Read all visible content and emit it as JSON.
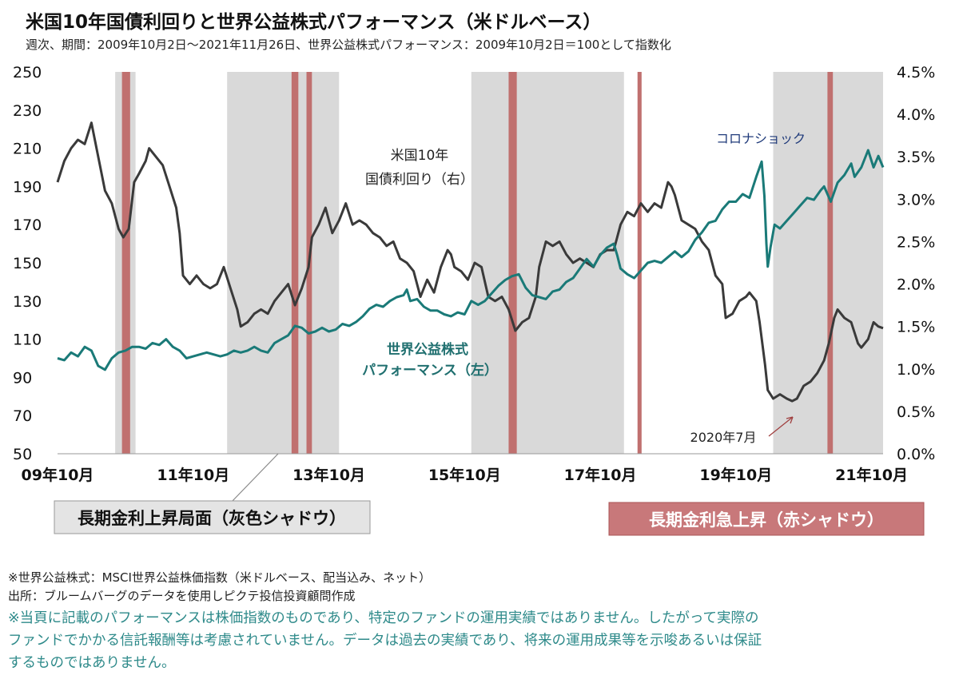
{
  "header": {
    "title": "米国10年国債利回りと世界公益株式パフォーマンス（米ドルベース）",
    "subtitle": "週次、期間：2009年10月2日～2021年11月26日、世界公益株式パフォーマンス：2009年10月2日＝100として指数化"
  },
  "chart_data": {
    "type": "line",
    "x_unit": "year",
    "x_range": [
      2009.75,
      2021.92
    ],
    "x_tick_labels": [
      "09年10月",
      "11年10月",
      "13年10月",
      "15年10月",
      "17年10月",
      "19年10月",
      "21年10月"
    ],
    "left_axis": {
      "ylim": [
        50,
        250
      ],
      "ticks": [
        "50",
        "70",
        "90",
        "110",
        "130",
        "150",
        "170",
        "190",
        "210",
        "230",
        "250"
      ]
    },
    "right_axis": {
      "ylim": [
        0.0,
        4.5
      ],
      "ticks": [
        "0.0%",
        "0.5%",
        "1.0%",
        "1.5%",
        "2.0%",
        "2.5%",
        "3.0%",
        "3.5%",
        "4.0%",
        "4.5%"
      ]
    },
    "series": [
      {
        "name": "米国10年国債利回り（右）",
        "axis": "right",
        "color": "#3a3a3a",
        "points": [
          [
            2009.75,
            3.2
          ],
          [
            2009.85,
            3.45
          ],
          [
            2009.95,
            3.6
          ],
          [
            2010.05,
            3.7
          ],
          [
            2010.15,
            3.65
          ],
          [
            2010.25,
            3.9
          ],
          [
            2010.35,
            3.5
          ],
          [
            2010.45,
            3.1
          ],
          [
            2010.55,
            2.95
          ],
          [
            2010.65,
            2.65
          ],
          [
            2010.72,
            2.55
          ],
          [
            2010.8,
            2.65
          ],
          [
            2010.88,
            3.2
          ],
          [
            2010.95,
            3.3
          ],
          [
            2011.05,
            3.45
          ],
          [
            2011.1,
            3.6
          ],
          [
            2011.2,
            3.5
          ],
          [
            2011.3,
            3.4
          ],
          [
            2011.4,
            3.15
          ],
          [
            2011.5,
            2.9
          ],
          [
            2011.55,
            2.6
          ],
          [
            2011.6,
            2.1
          ],
          [
            2011.7,
            2.0
          ],
          [
            2011.8,
            2.1
          ],
          [
            2011.9,
            2.0
          ],
          [
            2012.0,
            1.95
          ],
          [
            2012.1,
            2.0
          ],
          [
            2012.2,
            2.2
          ],
          [
            2012.3,
            1.95
          ],
          [
            2012.4,
            1.7
          ],
          [
            2012.45,
            1.5
          ],
          [
            2012.55,
            1.55
          ],
          [
            2012.65,
            1.65
          ],
          [
            2012.75,
            1.7
          ],
          [
            2012.85,
            1.65
          ],
          [
            2012.95,
            1.8
          ],
          [
            2013.05,
            1.9
          ],
          [
            2013.15,
            2.0
          ],
          [
            2013.25,
            1.75
          ],
          [
            2013.35,
            1.95
          ],
          [
            2013.45,
            2.2
          ],
          [
            2013.5,
            2.55
          ],
          [
            2013.6,
            2.7
          ],
          [
            2013.7,
            2.9
          ],
          [
            2013.8,
            2.6
          ],
          [
            2013.9,
            2.75
          ],
          [
            2014.0,
            2.95
          ],
          [
            2014.1,
            2.7
          ],
          [
            2014.2,
            2.75
          ],
          [
            2014.3,
            2.7
          ],
          [
            2014.4,
            2.6
          ],
          [
            2014.5,
            2.55
          ],
          [
            2014.6,
            2.45
          ],
          [
            2014.7,
            2.5
          ],
          [
            2014.8,
            2.3
          ],
          [
            2014.9,
            2.25
          ],
          [
            2015.0,
            2.15
          ],
          [
            2015.1,
            1.85
          ],
          [
            2015.2,
            2.05
          ],
          [
            2015.3,
            1.9
          ],
          [
            2015.4,
            2.2
          ],
          [
            2015.5,
            2.4
          ],
          [
            2015.55,
            2.35
          ],
          [
            2015.6,
            2.2
          ],
          [
            2015.7,
            2.15
          ],
          [
            2015.8,
            2.05
          ],
          [
            2015.9,
            2.25
          ],
          [
            2016.0,
            2.2
          ],
          [
            2016.1,
            1.85
          ],
          [
            2016.2,
            1.8
          ],
          [
            2016.3,
            1.85
          ],
          [
            2016.4,
            1.7
          ],
          [
            2016.5,
            1.45
          ],
          [
            2016.6,
            1.55
          ],
          [
            2016.7,
            1.6
          ],
          [
            2016.8,
            1.85
          ],
          [
            2016.85,
            2.2
          ],
          [
            2016.95,
            2.5
          ],
          [
            2017.05,
            2.45
          ],
          [
            2017.15,
            2.5
          ],
          [
            2017.25,
            2.35
          ],
          [
            2017.35,
            2.25
          ],
          [
            2017.45,
            2.3
          ],
          [
            2017.55,
            2.25
          ],
          [
            2017.65,
            2.2
          ],
          [
            2017.75,
            2.35
          ],
          [
            2017.85,
            2.4
          ],
          [
            2017.95,
            2.4
          ],
          [
            2018.05,
            2.7
          ],
          [
            2018.15,
            2.85
          ],
          [
            2018.25,
            2.8
          ],
          [
            2018.35,
            2.95
          ],
          [
            2018.45,
            2.85
          ],
          [
            2018.55,
            2.95
          ],
          [
            2018.65,
            2.9
          ],
          [
            2018.75,
            3.2
          ],
          [
            2018.8,
            3.15
          ],
          [
            2018.85,
            3.05
          ],
          [
            2018.95,
            2.75
          ],
          [
            2019.05,
            2.7
          ],
          [
            2019.15,
            2.65
          ],
          [
            2019.25,
            2.5
          ],
          [
            2019.35,
            2.4
          ],
          [
            2019.45,
            2.1
          ],
          [
            2019.55,
            2.0
          ],
          [
            2019.6,
            1.6
          ],
          [
            2019.7,
            1.65
          ],
          [
            2019.8,
            1.8
          ],
          [
            2019.9,
            1.85
          ],
          [
            2019.95,
            1.9
          ],
          [
            2020.05,
            1.8
          ],
          [
            2020.1,
            1.55
          ],
          [
            2020.18,
            1.05
          ],
          [
            2020.22,
            0.75
          ],
          [
            2020.3,
            0.65
          ],
          [
            2020.4,
            0.7
          ],
          [
            2020.5,
            0.65
          ],
          [
            2020.58,
            0.62
          ],
          [
            2020.65,
            0.65
          ],
          [
            2020.75,
            0.8
          ],
          [
            2020.85,
            0.85
          ],
          [
            2020.95,
            0.95
          ],
          [
            2021.05,
            1.1
          ],
          [
            2021.12,
            1.3
          ],
          [
            2021.2,
            1.6
          ],
          [
            2021.25,
            1.7
          ],
          [
            2021.35,
            1.6
          ],
          [
            2021.45,
            1.55
          ],
          [
            2021.55,
            1.3
          ],
          [
            2021.6,
            1.25
          ],
          [
            2021.7,
            1.35
          ],
          [
            2021.78,
            1.55
          ],
          [
            2021.85,
            1.5
          ],
          [
            2021.92,
            1.48
          ]
        ]
      },
      {
        "name": "世界公益株式パフォーマンス（左）",
        "axis": "left",
        "color": "#1a7a78",
        "points": [
          [
            2009.75,
            100
          ],
          [
            2009.85,
            99
          ],
          [
            2009.95,
            103
          ],
          [
            2010.05,
            101
          ],
          [
            2010.15,
            106
          ],
          [
            2010.25,
            104
          ],
          [
            2010.35,
            96
          ],
          [
            2010.45,
            94
          ],
          [
            2010.55,
            100
          ],
          [
            2010.65,
            103
          ],
          [
            2010.75,
            104
          ],
          [
            2010.85,
            106
          ],
          [
            2010.95,
            106
          ],
          [
            2011.05,
            105
          ],
          [
            2011.15,
            108
          ],
          [
            2011.25,
            107
          ],
          [
            2011.35,
            110
          ],
          [
            2011.45,
            106
          ],
          [
            2011.55,
            104
          ],
          [
            2011.65,
            100
          ],
          [
            2011.75,
            101
          ],
          [
            2011.85,
            102
          ],
          [
            2011.95,
            103
          ],
          [
            2012.05,
            102
          ],
          [
            2012.15,
            101
          ],
          [
            2012.25,
            102
          ],
          [
            2012.35,
            104
          ],
          [
            2012.45,
            103
          ],
          [
            2012.55,
            104
          ],
          [
            2012.65,
            106
          ],
          [
            2012.75,
            104
          ],
          [
            2012.85,
            103
          ],
          [
            2012.95,
            108
          ],
          [
            2013.05,
            110
          ],
          [
            2013.15,
            112
          ],
          [
            2013.25,
            117
          ],
          [
            2013.35,
            116
          ],
          [
            2013.45,
            113
          ],
          [
            2013.55,
            114
          ],
          [
            2013.65,
            116
          ],
          [
            2013.75,
            114
          ],
          [
            2013.85,
            115
          ],
          [
            2013.95,
            118
          ],
          [
            2014.05,
            117
          ],
          [
            2014.15,
            119
          ],
          [
            2014.25,
            122
          ],
          [
            2014.35,
            126
          ],
          [
            2014.45,
            128
          ],
          [
            2014.55,
            127
          ],
          [
            2014.65,
            130
          ],
          [
            2014.75,
            132
          ],
          [
            2014.85,
            133
          ],
          [
            2014.9,
            136
          ],
          [
            2014.95,
            130
          ],
          [
            2015.05,
            131
          ],
          [
            2015.15,
            127
          ],
          [
            2015.25,
            125
          ],
          [
            2015.35,
            125
          ],
          [
            2015.45,
            123
          ],
          [
            2015.55,
            122
          ],
          [
            2015.65,
            124
          ],
          [
            2015.75,
            123
          ],
          [
            2015.85,
            130
          ],
          [
            2015.95,
            128
          ],
          [
            2016.05,
            130
          ],
          [
            2016.15,
            134
          ],
          [
            2016.25,
            138
          ],
          [
            2016.35,
            141
          ],
          [
            2016.45,
            143
          ],
          [
            2016.55,
            144
          ],
          [
            2016.65,
            137
          ],
          [
            2016.75,
            133
          ],
          [
            2016.85,
            132
          ],
          [
            2016.95,
            131
          ],
          [
            2017.05,
            135
          ],
          [
            2017.15,
            136
          ],
          [
            2017.25,
            140
          ],
          [
            2017.35,
            142
          ],
          [
            2017.45,
            147
          ],
          [
            2017.55,
            152
          ],
          [
            2017.65,
            148
          ],
          [
            2017.75,
            154
          ],
          [
            2017.85,
            158
          ],
          [
            2017.95,
            160
          ],
          [
            2018.0,
            154
          ],
          [
            2018.05,
            147
          ],
          [
            2018.15,
            144
          ],
          [
            2018.25,
            142
          ],
          [
            2018.35,
            146
          ],
          [
            2018.45,
            150
          ],
          [
            2018.55,
            151
          ],
          [
            2018.65,
            150
          ],
          [
            2018.75,
            153
          ],
          [
            2018.85,
            156
          ],
          [
            2018.95,
            153
          ],
          [
            2019.05,
            156
          ],
          [
            2019.15,
            162
          ],
          [
            2019.25,
            166
          ],
          [
            2019.35,
            171
          ],
          [
            2019.45,
            172
          ],
          [
            2019.55,
            178
          ],
          [
            2019.65,
            182
          ],
          [
            2019.75,
            182
          ],
          [
            2019.85,
            186
          ],
          [
            2019.95,
            184
          ],
          [
            2020.05,
            195
          ],
          [
            2020.1,
            200
          ],
          [
            2020.13,
            203
          ],
          [
            2020.17,
            185
          ],
          [
            2020.2,
            160
          ],
          [
            2020.22,
            148
          ],
          [
            2020.26,
            158
          ],
          [
            2020.32,
            170
          ],
          [
            2020.4,
            168
          ],
          [
            2020.5,
            172
          ],
          [
            2020.6,
            176
          ],
          [
            2020.7,
            180
          ],
          [
            2020.8,
            184
          ],
          [
            2020.9,
            183
          ],
          [
            2021.0,
            188
          ],
          [
            2021.05,
            190
          ],
          [
            2021.15,
            182
          ],
          [
            2021.25,
            192
          ],
          [
            2021.35,
            196
          ],
          [
            2021.45,
            202
          ],
          [
            2021.5,
            195
          ],
          [
            2021.6,
            200
          ],
          [
            2021.7,
            209
          ],
          [
            2021.78,
            200
          ],
          [
            2021.85,
            206
          ],
          [
            2021.92,
            200
          ]
        ]
      }
    ],
    "gray_shadows": [
      [
        2010.6,
        2010.9
      ],
      [
        2012.25,
        2013.9
      ],
      [
        2015.85,
        2018.1
      ],
      [
        2020.3,
        2021.92
      ]
    ],
    "red_shadows": [
      [
        2010.7,
        2010.82
      ],
      [
        2013.2,
        2013.3
      ],
      [
        2013.42,
        2013.5
      ],
      [
        2016.4,
        2016.52
      ],
      [
        2018.3,
        2018.36
      ],
      [
        2021.1,
        2021.18
      ]
    ],
    "annotations": {
      "yield_label_line1": "米国10年",
      "yield_label_line2": "国債利回り（右）",
      "equity_label_line1": "世界公益株式",
      "equity_label_line2": "パフォーマンス（左）",
      "corona": "コロナショック",
      "july2020": "2020年7月"
    },
    "legend": {
      "gray": "長期金利上昇局面（灰色シャドウ）",
      "red": "長期金利急上昇（赤シャドウ）"
    }
  },
  "notes": {
    "line1": "※世界公益株式：MSCI世界公益株価指数（米ドルベース、配当込み、ネット）",
    "line2": "出所：ブルームバーグのデータを使用しピクテ投信投資顧問作成",
    "disclaimer1": "※当頁に記載のパフォーマンスは株価指数のものであり、特定のファンドの運用実績ではありません。したがって実際の",
    "disclaimer2": "ファンドでかかる信託報酬等は考慮されていません。データは過去の実績であり、将来の運用成果等を示唆あるいは保証",
    "disclaimer3": "するものではありません。"
  },
  "colors": {
    "gray_shadow": "#d9d9d9",
    "red_shadow": "#c0706f",
    "yield_line": "#3a3a3a",
    "equity_line": "#1a7a78",
    "equity_label": "#1f6f6f",
    "corona_label": "#1f3a7a",
    "red_box_fill": "#c8787a",
    "disclaimer": "#2e8a8a"
  }
}
